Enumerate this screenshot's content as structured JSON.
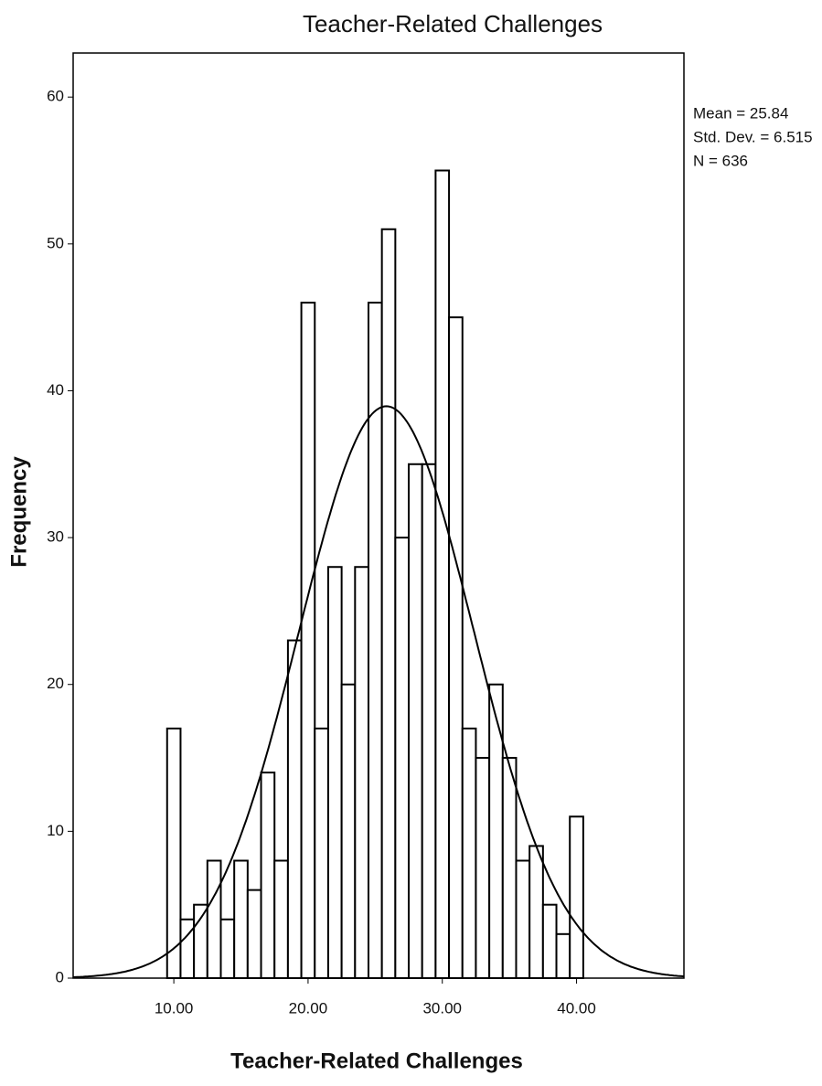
{
  "chart_data": {
    "type": "histogram",
    "title": "Teacher-Related Challenges",
    "x_label": "Teacher-Related Challenges",
    "y_label": "Frequency",
    "bins": [
      9.5,
      10.5,
      11.5,
      12.5,
      13.5,
      14.5,
      15.5,
      16.5,
      17.5,
      18.5,
      19.5,
      20.5,
      21.5,
      22.5,
      23.5,
      24.5,
      25.5,
      26.5,
      27.5,
      28.5,
      29.5,
      30.5,
      31.5,
      32.5,
      33.5,
      34.5,
      35.5,
      36.5,
      37.5,
      38.5,
      39.5,
      40.5
    ],
    "counts": [
      17,
      4,
      5,
      8,
      4,
      8,
      6,
      14,
      8,
      23,
      46,
      17,
      28,
      20,
      28,
      46,
      51,
      30,
      35,
      35,
      55,
      45,
      17,
      15,
      20,
      15,
      8,
      9,
      5,
      3,
      11
    ],
    "color": "#ffffff",
    "edge_color": "#000000",
    "xlim": [
      2.5,
      48
    ],
    "ylim": [
      0,
      63
    ],
    "xticks": [
      {
        "value": 10,
        "label": "10.00"
      },
      {
        "value": 20,
        "label": "20.00"
      },
      {
        "value": 30,
        "label": "30.00"
      },
      {
        "value": 40,
        "label": "40.00"
      }
    ],
    "yticks": [
      0,
      10,
      20,
      30,
      40,
      50,
      60
    ],
    "grid": false,
    "stats": [
      {
        "value": 25.84,
        "label": "Mean = 25.84"
      },
      {
        "value": 6.515,
        "label": "Std. Dev. = 6.515"
      },
      {
        "value": 636,
        "label": "N = 636"
      }
    ]
  }
}
